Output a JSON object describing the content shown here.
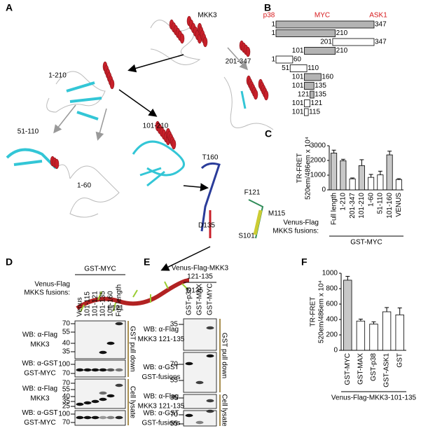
{
  "panel_A": {
    "letter": "A",
    "labels": [
      "MKK3",
      "1-210",
      "201-347",
      "51-110",
      "1-60",
      "101-210",
      "T160",
      "F121",
      "M115",
      "D135",
      "S101",
      "D135",
      "F121"
    ]
  },
  "panel_B": {
    "letter": "B",
    "fill_color": "#b3b3b3",
    "domains": [
      {
        "name": "p38",
        "color": "#d7191c"
      },
      {
        "name": "MYC",
        "color": "#d7191c"
      },
      {
        "name": "ASK1",
        "color": "#d7191c"
      }
    ],
    "constructs": [
      {
        "start": 1,
        "end": 347,
        "filled": true
      },
      {
        "start": 1,
        "end": 210,
        "filled": true
      },
      {
        "start": 201,
        "end": 347,
        "filled": false
      },
      {
        "start": 101,
        "end": 210,
        "filled": true
      },
      {
        "start": 1,
        "end": 60,
        "filled": false
      },
      {
        "start": 51,
        "end": 110,
        "filled": false
      },
      {
        "start": 101,
        "end": 160,
        "filled": true
      },
      {
        "start": 101,
        "end": 135,
        "filled": true
      },
      {
        "start": 121,
        "end": 135,
        "filled": true
      },
      {
        "start": 101,
        "end": 121,
        "filled": false
      },
      {
        "start": 101,
        "end": 115,
        "filled": false
      }
    ]
  },
  "chart_data": [
    {
      "panel": "C",
      "type": "bar",
      "y_label": [
        "TR-FRET",
        "520em/486em x 10⁴"
      ],
      "categories": [
        "Full length",
        "1-210",
        "201-347",
        "101-210",
        "1-60",
        "51-110",
        "101-160",
        "VENUS"
      ],
      "values": [
        2500,
        1980,
        750,
        1650,
        850,
        1020,
        2380,
        700
      ],
      "errors": [
        200,
        100,
        60,
        400,
        200,
        250,
        250,
        60
      ],
      "colors": [
        "#c8c8c8",
        "#c8c8c8",
        "#ffffff",
        "#c8c8c8",
        "#ffffff",
        "#ffffff",
        "#c8c8c8",
        "#ffffff"
      ],
      "ylim": [
        0,
        3000
      ],
      "yticks": [
        0,
        1000,
        2000,
        3000
      ],
      "x_label": [
        "Venus-Flag",
        "MKKS fusions:"
      ],
      "group_label": "GST-MYC"
    },
    {
      "panel": "F",
      "type": "bar",
      "y_label": [
        "TR-FRET",
        "520em/486em x 10⁴"
      ],
      "categories": [
        "GST-MYC",
        "GST-MAX",
        "GST-p38",
        "GST-ASK1",
        "GST"
      ],
      "values": [
        910,
        380,
        340,
        500,
        460
      ],
      "errors": [
        50,
        25,
        30,
        55,
        90
      ],
      "colors": [
        "#c8c8c8",
        "#ffffff",
        "#ffffff",
        "#ffffff",
        "#ffffff"
      ],
      "ylim": [
        0,
        1000
      ],
      "yticks": [
        0,
        200,
        400,
        600,
        800,
        1000
      ],
      "group_label": "Venus-Flag-MKK3-101-135"
    }
  ],
  "panel_D": {
    "letter": "D",
    "header": "GST-MYC",
    "lane_title": [
      "Venus-Flag",
      "MKKS fusions:"
    ],
    "lanes": [
      "Venus",
      "101-115",
      "101-121",
      "101-135",
      "101-160",
      "Full length"
    ],
    "rows": [
      {
        "label": [
          "WB: α-Flag",
          "MKK3"
        ],
        "markers": [
          70,
          55,
          40,
          35
        ]
      },
      {
        "label": [
          "WB: α-GST",
          "GST-MYC"
        ],
        "markers": [
          100,
          70
        ]
      },
      {
        "label": [
          "WB: α-Flag",
          "MKK3"
        ],
        "markers": [
          70,
          55,
          40,
          35,
          25
        ]
      },
      {
        "label": [
          "WB: α-GST",
          "GST-MYC"
        ],
        "markers": [
          100,
          70
        ]
      }
    ],
    "sections": [
      "GST pull down",
      "Cell lysate"
    ]
  },
  "panel_E": {
    "letter": "E",
    "header": [
      "Venus-Flag-MKK3",
      "121-135"
    ],
    "lanes": [
      "GST-p38",
      "GST-MAX",
      "GST-MYC"
    ],
    "rows": [
      {
        "label": [
          "WB: α-Flag",
          "MKK3 121-135"
        ],
        "markers": [
          35
        ]
      },
      {
        "label": [
          "WB: α-GST",
          "GST-fusions"
        ],
        "markers": [
          70,
          55
        ]
      },
      {
        "label": [
          "WB: α-Flag",
          "MKK3 121-135"
        ],
        "markers": [
          35
        ]
      },
      {
        "label": [
          "WB: α-GST",
          "GST-fusions"
        ],
        "markers": [
          70,
          55
        ]
      }
    ],
    "sections": [
      "GST pull down",
      "Cell lysate"
    ]
  }
}
